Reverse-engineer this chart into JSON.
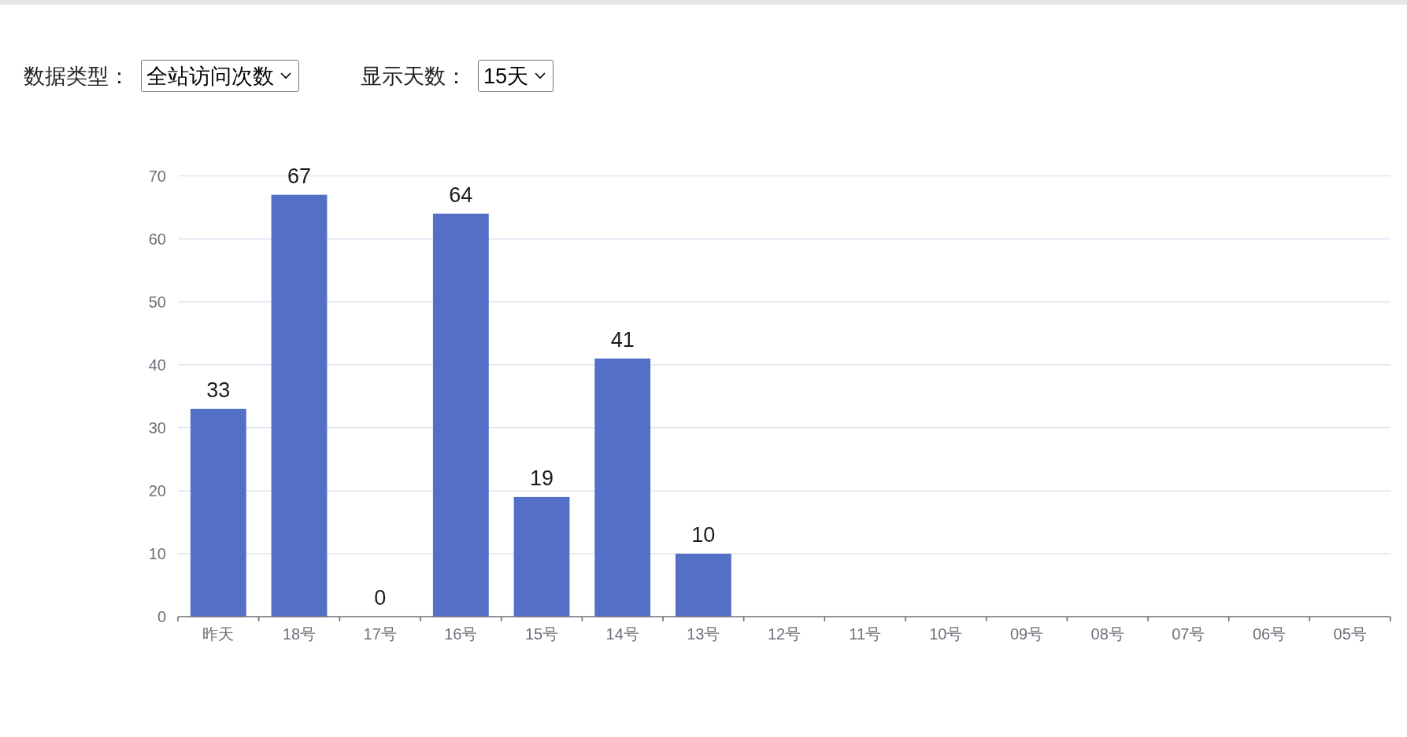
{
  "chart_data": {
    "type": "bar",
    "categories": [
      "昨天",
      "18号",
      "17号",
      "16号",
      "15号",
      "14号",
      "13号",
      "12号",
      "11号",
      "10号",
      "09号",
      "08号",
      "07号",
      "06号",
      "05号"
    ],
    "values": [
      33,
      67,
      0,
      64,
      19,
      41,
      10,
      null,
      null,
      null,
      null,
      null,
      null,
      null,
      null
    ],
    "color": "#5470c6",
    "ylim": [
      0,
      70
    ],
    "yticks": [
      0,
      10,
      20,
      30,
      40,
      50,
      60,
      70
    ],
    "grid": "y",
    "data_labels": true,
    "annotations": [
      "数据类型：",
      "全站访问次数",
      "显示天数：",
      "15天"
    ]
  }
}
